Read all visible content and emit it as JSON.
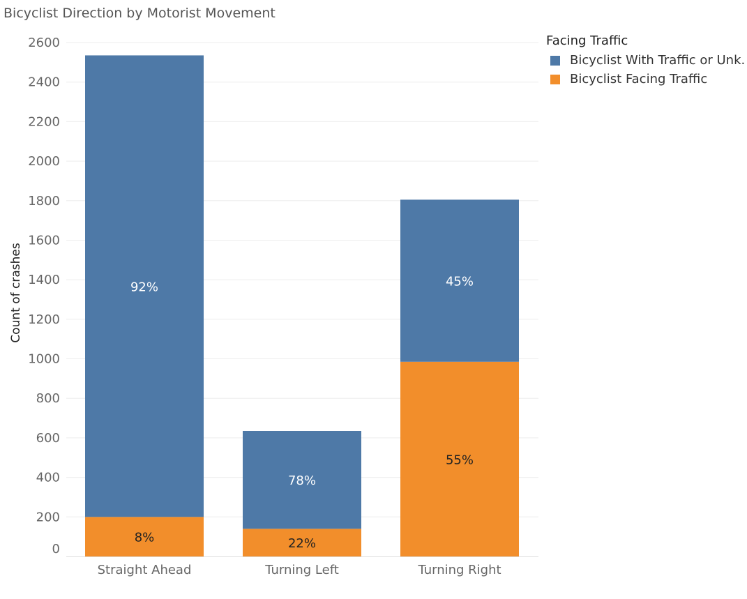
{
  "colors": {
    "series_with_traffic": "#4e79a7",
    "series_facing_traffic": "#f28e2b",
    "gridline": "#eeeeee",
    "axis": "#dddddd",
    "label_on_blue": "#ffffff",
    "label_on_orange": "#222222"
  },
  "chart_data": {
    "type": "bar",
    "stacked": true,
    "title": "Bicyclist Direction by Motorist Movement",
    "xlabel": "",
    "ylabel": "Count of crashes",
    "ylim": [
      0,
      2600
    ],
    "yticks": [
      0,
      200,
      400,
      600,
      800,
      1000,
      1200,
      1400,
      1600,
      1800,
      2000,
      2200,
      2400,
      2600
    ],
    "grid": true,
    "legend_position": "top-right",
    "legend_title": "Facing Traffic",
    "categories": [
      "Straight Ahead",
      "Turning Left",
      "Turning Right"
    ],
    "series": [
      {
        "name": "Bicyclist Facing Traffic",
        "values": [
          200,
          140,
          985
        ],
        "labels": [
          "8%",
          "22%",
          "55%"
        ]
      },
      {
        "name": "Bicyclist With Traffic or Unk.",
        "values": [
          2335,
          495,
          820
        ],
        "labels": [
          "92%",
          "78%",
          "45%"
        ]
      }
    ]
  }
}
